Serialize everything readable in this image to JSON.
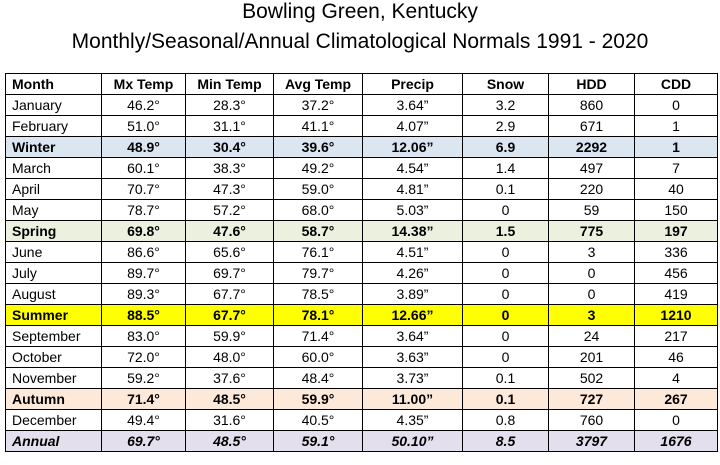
{
  "title_line1": "Bowling Green, Kentucky",
  "title_line2": "Monthly/Seasonal/Annual Climatological Normals 1991 - 2020",
  "columns": [
    "Month",
    "Mx Temp",
    "Min Temp",
    "Avg Temp",
    "Precip",
    "Snow",
    "HDD",
    "CDD"
  ],
  "row_colors": {
    "Winter": "#dce6f1",
    "Spring": "#ebf1de",
    "Summer": "#ffff00",
    "Autumn": "#fde9d9",
    "Annual": "#e4dfec"
  },
  "rows": [
    {
      "kind": "month",
      "cells": [
        "January",
        "46.2°",
        "28.3°",
        "37.2°",
        "3.64”",
        "3.2",
        "860",
        "0"
      ]
    },
    {
      "kind": "month",
      "cells": [
        "February",
        "51.0°",
        "31.1°",
        "41.1°",
        "4.07”",
        "2.9",
        "671",
        "1"
      ]
    },
    {
      "kind": "season",
      "cells": [
        "Winter",
        "48.9°",
        "30.4°",
        "39.6°",
        "12.06”",
        "6.9",
        "2292",
        "1"
      ]
    },
    {
      "kind": "month",
      "cells": [
        "March",
        "60.1°",
        "38.3°",
        "49.2°",
        "4.54”",
        "1.4",
        "497",
        "7"
      ]
    },
    {
      "kind": "month",
      "cells": [
        "April",
        "70.7°",
        "47.3°",
        "59.0°",
        "4.81”",
        "0.1",
        "220",
        "40"
      ]
    },
    {
      "kind": "month",
      "cells": [
        "May",
        "78.7°",
        "57.2°",
        "68.0°",
        "5.03”",
        "0",
        "59",
        "150"
      ]
    },
    {
      "kind": "season",
      "cells": [
        "Spring",
        "69.8°",
        "47.6°",
        "58.7°",
        "14.38”",
        "1.5",
        "775",
        "197"
      ]
    },
    {
      "kind": "month",
      "cells": [
        "June",
        "86.6°",
        "65.6°",
        "76.1°",
        "4.51”",
        "0",
        "3",
        "336"
      ]
    },
    {
      "kind": "month",
      "cells": [
        "July",
        "89.7°",
        "69.7°",
        "79.7°",
        "4.26”",
        "0",
        "0",
        "456"
      ]
    },
    {
      "kind": "month",
      "cells": [
        "August",
        "89.3°",
        "67.7°",
        "78.5°",
        "3.89”",
        "0",
        "0",
        "419"
      ]
    },
    {
      "kind": "season",
      "cells": [
        "Summer",
        "88.5°",
        "67.7°",
        "78.1°",
        "12.66”",
        "0",
        "3",
        "1210"
      ]
    },
    {
      "kind": "month",
      "cells": [
        "September",
        "83.0°",
        "59.9°",
        "71.4°",
        "3.64”",
        "0",
        "24",
        "217"
      ]
    },
    {
      "kind": "month",
      "cells": [
        "October",
        "72.0°",
        "48.0°",
        "60.0°",
        "3.63”",
        "0",
        "201",
        "46"
      ]
    },
    {
      "kind": "month",
      "cells": [
        "November",
        "59.2°",
        "37.6°",
        "48.4°",
        "3.73”",
        "0.1",
        "502",
        "4"
      ]
    },
    {
      "kind": "season",
      "cells": [
        "Autumn",
        "71.4°",
        "48.5°",
        "59.9°",
        "11.00”",
        "0.1",
        "727",
        "267"
      ]
    },
    {
      "kind": "month",
      "cells": [
        "December",
        "49.4°",
        "31.6°",
        "40.5°",
        "4.35”",
        "0.8",
        "760",
        "0"
      ]
    },
    {
      "kind": "annual",
      "cells": [
        "Annual",
        "69.7°",
        "48.5°",
        "59.1°",
        "50.10”",
        "8.5",
        "3797",
        "1676"
      ]
    }
  ]
}
